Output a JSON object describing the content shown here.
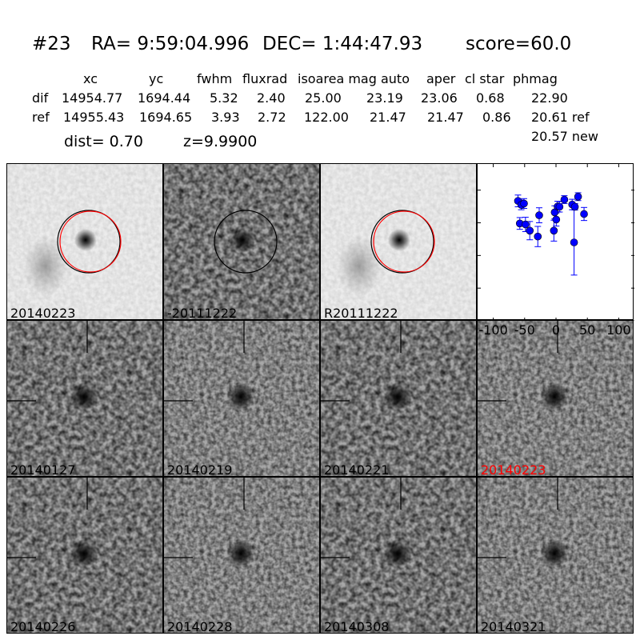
{
  "header": {
    "id": "#23",
    "ra": "RA= 9:59:04.996",
    "dec": "DEC= 1:44:47.93",
    "score": "score=60.0"
  },
  "table": {
    "columns": [
      "xc",
      "yc",
      "fwhm",
      "fluxrad",
      "isoarea mag auto",
      "aper",
      "cl star",
      "phmag"
    ],
    "rows": [
      {
        "label": "dif",
        "values": [
          "14954.77",
          "1694.44",
          "5.32",
          "2.40",
          "25.00",
          "23.19",
          "23.06",
          "0.68",
          "22.90"
        ]
      },
      {
        "label": "ref",
        "values": [
          "14955.43",
          "1694.65",
          "3.93",
          "2.72",
          "122.00",
          "21.47",
          "21.47",
          "0.86",
          "20.61 ref"
        ]
      }
    ],
    "new_phmag": "20.57 new",
    "dist": "dist=  0.70",
    "z": "z=9.9900"
  },
  "stamps": [
    {
      "label": "20140223",
      "kind": "new",
      "circle": true
    },
    {
      "label": "-20111222",
      "kind": "diff",
      "circle": true
    },
    {
      "label": "R20111222",
      "kind": "ref",
      "circle": true
    },
    {
      "label": "20140127",
      "kind": "epoch"
    },
    {
      "label": "20140219",
      "kind": "epoch"
    },
    {
      "label": "20140221",
      "kind": "epoch"
    },
    {
      "label": "20140223",
      "kind": "epoch",
      "highlight": true
    },
    {
      "label": "20140226",
      "kind": "epoch"
    },
    {
      "label": "20140228",
      "kind": "epoch"
    },
    {
      "label": "20140308",
      "kind": "epoch"
    },
    {
      "label": "20140321",
      "kind": "epoch"
    }
  ],
  "colors": {
    "marker": "#0000ff",
    "circle_black": "#000000",
    "circle_red": "#ff0000",
    "highlight_label": "#ff0000"
  },
  "chart_data": {
    "type": "scatter",
    "error_bars": true,
    "xlim": [
      -125,
      125
    ],
    "ylim": [
      26,
      21.2
    ],
    "y_inverted": true,
    "xticks": [
      "-100",
      "-50",
      "0",
      "50",
      "100"
    ],
    "yticks": [
      "22",
      "23",
      "24",
      "25",
      "26"
    ],
    "grid": false,
    "points": [
      {
        "x": -60.6,
        "y": 22.33,
        "err": 0.18
      },
      {
        "x": -55.4,
        "y": 22.45,
        "err": 0.15
      },
      {
        "x": -51.0,
        "y": 22.41,
        "err": 0.15
      },
      {
        "x": -57.7,
        "y": 23.02,
        "err": 0.18
      },
      {
        "x": -48.7,
        "y": 23.05,
        "err": 0.22
      },
      {
        "x": -41.8,
        "y": 23.24,
        "err": 0.28
      },
      {
        "x": -26.8,
        "y": 22.77,
        "err": 0.23
      },
      {
        "x": -29.0,
        "y": 23.42,
        "err": 0.31
      },
      {
        "x": -2.1,
        "y": 22.68,
        "err": 0.2
      },
      {
        "x": -3.4,
        "y": 23.24,
        "err": 0.32
      },
      {
        "x": 0.4,
        "y": 22.9,
        "err": 0.2
      },
      {
        "x": 2.6,
        "y": 22.5,
        "err": 0.16
      },
      {
        "x": 5.6,
        "y": 22.51,
        "err": 0.16
      },
      {
        "x": 13.3,
        "y": 22.29,
        "err": 0.12
      },
      {
        "x": 25.8,
        "y": 22.44,
        "err": 0.16
      },
      {
        "x": 30.1,
        "y": 22.51,
        "err": 0.1
      },
      {
        "x": 28.8,
        "y": 23.6,
        "err": 1.0
      },
      {
        "x": 35.2,
        "y": 22.2,
        "err": 0.12
      },
      {
        "x": 44.7,
        "y": 22.73,
        "err": 0.2
      }
    ]
  }
}
